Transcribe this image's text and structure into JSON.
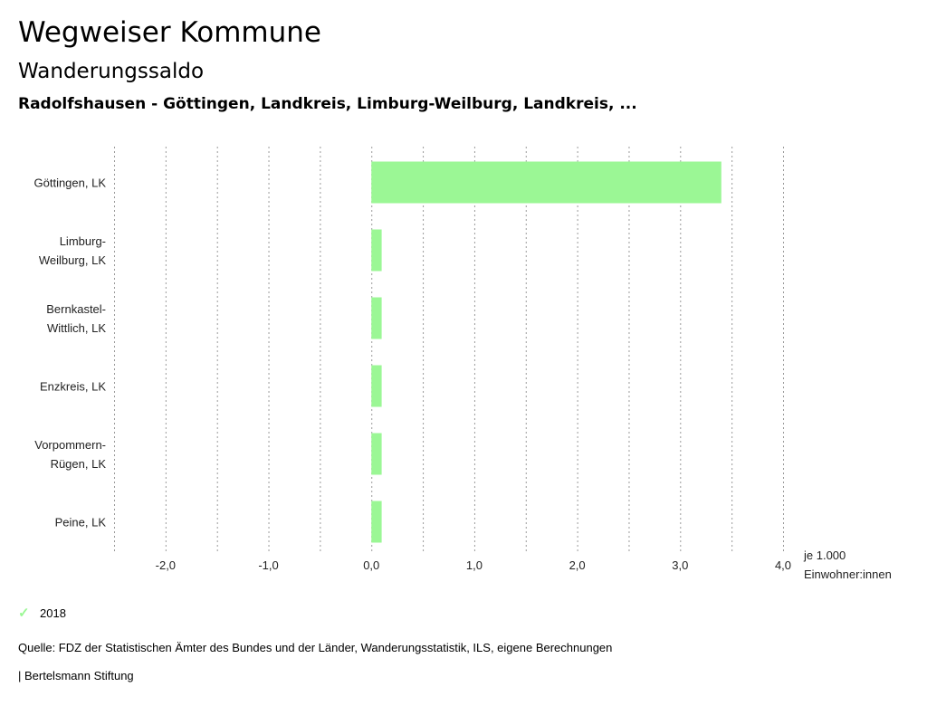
{
  "header": {
    "title": "Wegweiser Kommune",
    "subtitle": "Wanderungssaldo",
    "region": "Radolfshausen - Göttingen, Landkreis, Limburg-Weilburg, Landkreis, ..."
  },
  "chart_data": {
    "type": "bar",
    "orientation": "horizontal",
    "categories": [
      [
        "Göttingen, LK"
      ],
      [
        "Limburg-",
        "Weilburg, LK"
      ],
      [
        "Bernkastel-",
        "Wittlich, LK"
      ],
      [
        "Enzkreis, LK"
      ],
      [
        "Vorpommern-",
        "Rügen, LK"
      ],
      [
        "Peine, LK"
      ]
    ],
    "series": [
      {
        "name": "2018",
        "color": "#9bf795",
        "values": [
          3.4,
          0.1,
          0.1,
          0.1,
          0.1,
          0.1
        ]
      }
    ],
    "xlim": [
      -2.5,
      4.0
    ],
    "xticks": [
      -2.0,
      -1.0,
      0.0,
      1.0,
      2.0,
      3.0,
      4.0
    ],
    "xtick_labels": [
      "-2,0",
      "-1,0",
      "0,0",
      "1,0",
      "2,0",
      "3,0",
      "4,0"
    ],
    "unit_label": [
      "je 1.000",
      "Einwohner:innen"
    ],
    "grid": "vertical dotted"
  },
  "legend": {
    "label": "2018",
    "color": "#9bf795"
  },
  "footer": {
    "source": "Quelle: FDZ der Statistischen Ämter des Bundes und der Länder, Wanderungsstatistik, ILS, eigene Berechnungen",
    "credit": "| Bertelsmann Stiftung"
  }
}
